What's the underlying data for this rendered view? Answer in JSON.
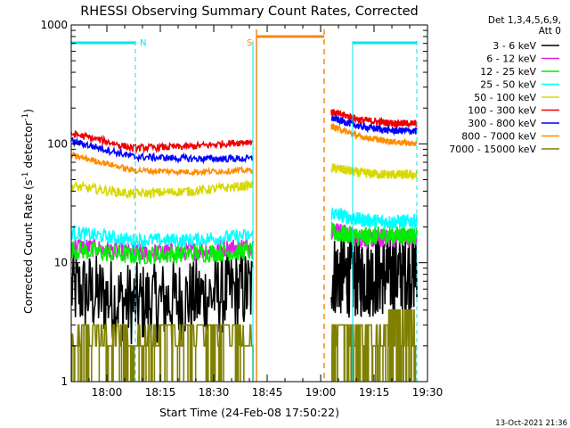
{
  "chart_data": {
    "type": "line",
    "title": "RHESSI Observing Summary Count Rates, Corrected",
    "xlabel": "Start Time (24-Feb-08 17:50:22)",
    "ylabel_main": "Corrected Count Rate (s",
    "ylabel_sup1": "-1",
    "ylabel_mid": " detector",
    "ylabel_sup2": "-1",
    "ylabel_end": ")",
    "yscale": "log",
    "ylim": [
      1,
      1000
    ],
    "xlim": [
      "17:50",
      "19:30"
    ],
    "x_ticks": [
      "18:00",
      "18:15",
      "18:30",
      "18:45",
      "19:00",
      "19:15",
      "19:30"
    ],
    "y_ticks": [
      "1",
      "10",
      "100",
      "1000"
    ],
    "detectors_line1": "Det 1,3,4,5,6,9,",
    "detectors_line2": "Att 0",
    "timestamp": "13-Oct-2021 21:36",
    "flags": [
      {
        "label": "N",
        "color": "#00e5ee",
        "segments": [
          [
            "17:50",
            "18:08"
          ],
          [
            "19:09",
            "19:27"
          ]
        ]
      },
      {
        "label": "S",
        "color": "#f08a18",
        "segments": [
          [
            "18:42",
            "19:01"
          ]
        ]
      }
    ],
    "intervals": {
      "gap_start": "18:41",
      "gap_end": "19:03",
      "night_lines": [
        "17:50",
        "18:08",
        "18:41",
        "19:09",
        "19:27"
      ],
      "saa_lines": [
        "18:42",
        "19:01"
      ]
    },
    "series": [
      {
        "name": "3 - 6 keV",
        "color": "#000000",
        "before": [
          6.0,
          4.5,
          5.0,
          6.0
        ],
        "after": [
          8.0,
          7.5,
          8.0,
          8.5
        ],
        "noise": 0.35
      },
      {
        "name": "6 - 12 keV",
        "color": "#e020e0",
        "before": [
          14.0,
          12.0,
          12.5,
          14.0
        ],
        "after": [
          19.0,
          16.0,
          16.0,
          16.5
        ],
        "noise": 0.08
      },
      {
        "name": "12 - 25 keV",
        "color": "#00ee00",
        "before": [
          13.0,
          11.5,
          12.0,
          12.5
        ],
        "after": [
          18.0,
          16.5,
          17.0,
          17.0
        ],
        "noise": 0.08
      },
      {
        "name": "25 - 50 keV",
        "color": "#00ffff",
        "before": [
          18.0,
          15.5,
          15.5,
          17.0
        ],
        "after": [
          26.0,
          23.0,
          22.0,
          22.5
        ],
        "noise": 0.06
      },
      {
        "name": "50 - 100 keV",
        "color": "#d8d800",
        "before": [
          44.0,
          38.0,
          40.0,
          45.0
        ],
        "after": [
          63.0,
          57.0,
          55.0,
          55.0
        ],
        "noise": 0.04
      },
      {
        "name": "100 - 300 keV",
        "color": "#ee0000",
        "before": [
          122.0,
          92.0,
          95.0,
          105.0
        ],
        "after": [
          185.0,
          160.0,
          150.0,
          148.0
        ],
        "noise": 0.03
      },
      {
        "name": "300 - 800 keV",
        "color": "#0000ff",
        "before": [
          105.0,
          78.0,
          75.0,
          75.0
        ],
        "after": [
          165.0,
          140.0,
          130.0,
          128.0
        ],
        "noise": 0.03
      },
      {
        "name": "800 - 7000 keV",
        "color": "#ff8c00",
        "before": [
          80.0,
          60.0,
          58.0,
          60.0
        ],
        "after": [
          140.0,
          115.0,
          105.0,
          100.0
        ],
        "noise": 0.025
      },
      {
        "name": "7000 - 15000 keV",
        "color": "#808000",
        "before": [
          2.5,
          2.0,
          2.0,
          2.5
        ],
        "after": [
          2.0,
          2.0,
          2.5,
          3.0
        ],
        "noise": 0.0
      }
    ]
  }
}
